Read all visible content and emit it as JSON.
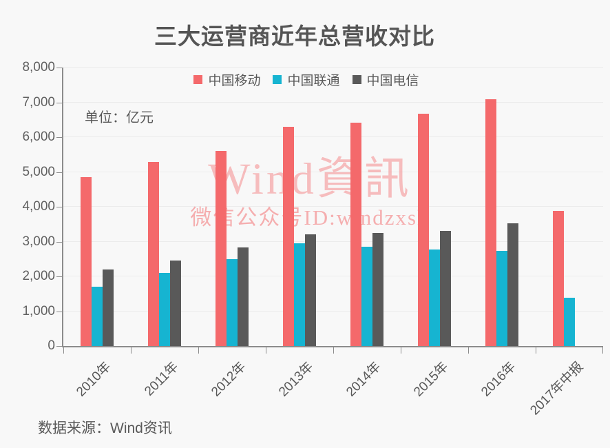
{
  "page": {
    "title": "三大运营商近年总营收对比",
    "unit_label": "单位：亿元",
    "source_label": "数据来源：Wind资讯",
    "watermark_line1": "Wind資訊",
    "watermark_line2": "微信公众号ID:windzxsh"
  },
  "colors": {
    "background": "#f8f8f8",
    "title_text": "#555555",
    "axis_text": "#616161",
    "axis_line": "#8c8c8c",
    "gridline": "#ececec",
    "watermark": "#f26c6e",
    "series_mobile": "#f4696b",
    "series_unicom": "#16b4d1",
    "series_telecom": "#595959"
  },
  "chart_data": {
    "type": "bar",
    "title": "三大运营商近年总营收对比",
    "unit": "亿元",
    "categories": [
      "2010年",
      "2011年",
      "2012年",
      "2013年",
      "2014年",
      "2015年",
      "2016年",
      "2017年中报"
    ],
    "series": [
      {
        "name": "中国移动",
        "color": "#f4696b",
        "values": [
          4852,
          5280,
          5604,
          6302,
          6414,
          6683,
          7084,
          3889
        ]
      },
      {
        "name": "中国联通",
        "color": "#16b4d1",
        "values": [
          1713,
          2091,
          2489,
          2950,
          2846,
          2769,
          2742,
          1381
        ]
      },
      {
        "name": "中国电信",
        "color": "#595959",
        "values": [
          2199,
          2450,
          2831,
          3216,
          3243,
          3312,
          3523,
          null
        ]
      }
    ],
    "ylim": [
      0,
      8000
    ],
    "ytick_interval": 1000,
    "ytick_labels": [
      "0",
      "1,000",
      "2,000",
      "3,000",
      "4,000",
      "5,000",
      "6,000",
      "7,000",
      "8,000"
    ],
    "grid": true,
    "legend_position": "top",
    "source": "数据来源：Wind资讯"
  }
}
